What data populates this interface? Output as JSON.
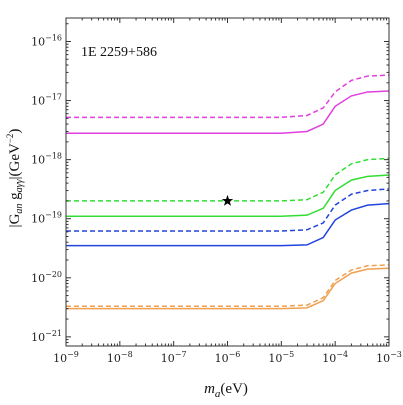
{
  "chart_data": {
    "type": "line",
    "title": "",
    "annotation": "1E 2259+586",
    "xlabel": {
      "main": "m",
      "sub": "a",
      "unit": "(eV)"
    },
    "ylabel": {
      "pre": "|G",
      "sub1": "an",
      "mid": " g",
      "sub2": "aγγ",
      "post": "|(GeV",
      "sup": "−2",
      "end": ")"
    },
    "xscale": "log",
    "yscale": "log",
    "xlim": [
      1e-09,
      0.001
    ],
    "ylim": [
      7e-22,
      2.5e-16
    ],
    "xticks": [
      {
        "value": 1e-09,
        "base": "10",
        "exp": "−9"
      },
      {
        "value": 1e-08,
        "base": "10",
        "exp": "−8"
      },
      {
        "value": 1e-07,
        "base": "10",
        "exp": "−7"
      },
      {
        "value": 1e-06,
        "base": "10",
        "exp": "−6"
      },
      {
        "value": 1e-05,
        "base": "10",
        "exp": "−5"
      },
      {
        "value": 0.0001,
        "base": "10",
        "exp": "−4"
      },
      {
        "value": 0.001,
        "base": "10",
        "exp": "−3"
      }
    ],
    "yticks": [
      {
        "value": 1e-21,
        "base": "10",
        "exp": "−21"
      },
      {
        "value": 1e-20,
        "base": "10",
        "exp": "−20"
      },
      {
        "value": 1e-19,
        "base": "10",
        "exp": "−19"
      },
      {
        "value": 1e-18,
        "base": "10",
        "exp": "−18"
      },
      {
        "value": 1e-17,
        "base": "10",
        "exp": "−17"
      },
      {
        "value": 1e-16,
        "base": "10",
        "exp": "−16"
      }
    ],
    "grid": false,
    "legend": "none",
    "series": [
      {
        "color": "#e040e0",
        "dash": "dashed",
        "x": [
          1e-09,
          1e-05,
          3e-05,
          6e-05,
          0.0001,
          0.0002,
          0.0004,
          0.001
        ],
        "y": [
          5.2e-18,
          5.2e-18,
          5.6e-18,
          7.5e-18,
          1.4e-17,
          2.2e-17,
          2.6e-17,
          2.7e-17
        ]
      },
      {
        "color": "#e040e0",
        "dash": "solid",
        "x": [
          1e-09,
          1e-05,
          3e-05,
          6e-05,
          0.0001,
          0.0002,
          0.0004,
          0.001
        ],
        "y": [
          2.8e-18,
          2.8e-18,
          3e-18,
          4e-18,
          8e-18,
          1.2e-17,
          1.4e-17,
          1.45e-17
        ]
      },
      {
        "color": "#33dd33",
        "dash": "dashed",
        "x": [
          1e-09,
          1e-05,
          3e-05,
          6e-05,
          0.0001,
          0.0002,
          0.0004,
          0.001
        ],
        "y": [
          2e-19,
          2e-19,
          2.1e-19,
          2.8e-19,
          5.5e-19,
          8.5e-19,
          1e-18,
          1.05e-18
        ]
      },
      {
        "color": "#33dd33",
        "dash": "solid",
        "x": [
          1e-09,
          1e-05,
          3e-05,
          6e-05,
          0.0001,
          0.0002,
          0.0004,
          0.001
        ],
        "y": [
          1.1e-19,
          1.1e-19,
          1.15e-19,
          1.5e-19,
          3e-19,
          4.5e-19,
          5.2e-19,
          5.5e-19
        ]
      },
      {
        "color": "#2244dd",
        "dash": "dashed",
        "x": [
          1e-09,
          1e-05,
          3e-05,
          6e-05,
          0.0001,
          0.0002,
          0.0004,
          0.001
        ],
        "y": [
          6.2e-20,
          6.2e-20,
          6.5e-20,
          8.5e-20,
          1.7e-19,
          2.6e-19,
          3e-19,
          3.2e-19
        ]
      },
      {
        "color": "#2244dd",
        "dash": "solid",
        "x": [
          1e-09,
          1e-05,
          3e-05,
          6e-05,
          0.0001,
          0.0002,
          0.0004,
          0.001
        ],
        "y": [
          3.5e-20,
          3.5e-20,
          3.6e-20,
          4.8e-20,
          9.5e-20,
          1.4e-19,
          1.7e-19,
          1.8e-19
        ]
      },
      {
        "color": "#f0a050",
        "dash": "dashed",
        "x": [
          1e-09,
          1e-05,
          3e-05,
          6e-05,
          0.0001,
          0.0002,
          0.0004,
          0.001
        ],
        "y": [
          3.3e-21,
          3.3e-21,
          3.45e-21,
          4.6e-21,
          9e-21,
          1.35e-20,
          1.6e-20,
          1.65e-20
        ]
      },
      {
        "color": "#f0a050",
        "dash": "solid",
        "x": [
          1e-09,
          1e-05,
          3e-05,
          6e-05,
          0.0001,
          0.0002,
          0.0004,
          0.001
        ],
        "y": [
          3e-21,
          3e-21,
          3.1e-21,
          4.1e-21,
          8e-21,
          1.2e-20,
          1.4e-20,
          1.45e-20
        ]
      }
    ],
    "marker": {
      "shape": "star",
      "color": "#000000",
      "x": 1e-06,
      "y": 2e-19
    }
  }
}
